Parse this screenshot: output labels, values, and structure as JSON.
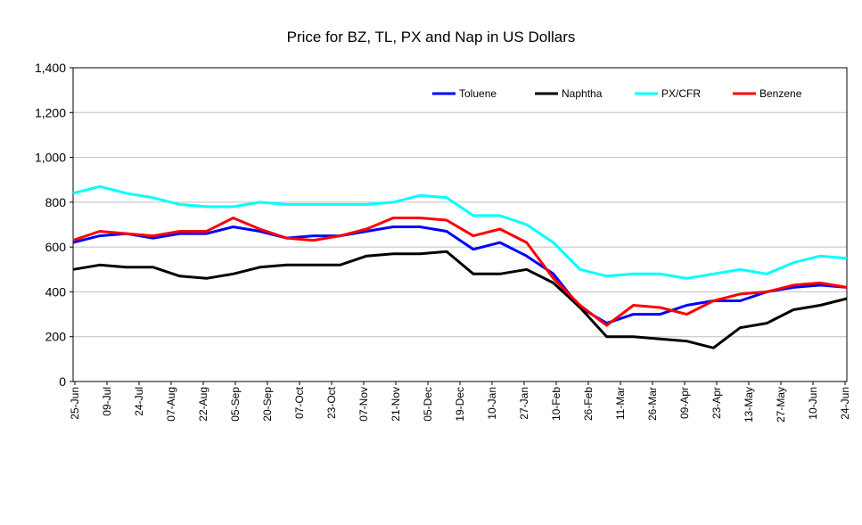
{
  "chart_data": {
    "type": "line",
    "title": "Price for BZ, TL, PX and Nap in US Dollars",
    "xlabel": "",
    "ylabel": "",
    "ylim": [
      0,
      1400
    ],
    "yticks": [
      0,
      200,
      400,
      600,
      800,
      1000,
      1200,
      1400
    ],
    "ytick_labels": [
      "0",
      "200",
      "400",
      "600",
      "800",
      "1,000",
      "1,200",
      "1,400"
    ],
    "grid": true,
    "legend_placement": "top-right",
    "x_tick_labels": [
      "25-Jun",
      "09-Jul",
      "24-Jul",
      "07-Aug",
      "22-Aug",
      "05-Sep",
      "20-Sep",
      "07-Oct",
      "23-Oct",
      "07-Nov",
      "21-Nov",
      "05-Dec",
      "19-Dec",
      "10-Jan",
      "27-Jan",
      "10-Feb",
      "26-Feb",
      "11-Mar",
      "26-Mar",
      "09-Apr",
      "23-Apr",
      "13-May",
      "27-May",
      "10-Jun",
      "24-Jun"
    ],
    "series": [
      {
        "name": "Toluene",
        "color": "#0000ff",
        "values": [
          620,
          650,
          660,
          640,
          660,
          660,
          690,
          670,
          640,
          650,
          650,
          670,
          690,
          690,
          670,
          590,
          620,
          560,
          480,
          330,
          260,
          300,
          300,
          340,
          360,
          360,
          400,
          420,
          430,
          420
        ]
      },
      {
        "name": "Naphtha",
        "color": "#000000",
        "values": [
          500,
          520,
          510,
          510,
          470,
          460,
          480,
          510,
          520,
          520,
          520,
          560,
          570,
          570,
          580,
          480,
          480,
          500,
          440,
          330,
          200,
          200,
          190,
          180,
          150,
          240,
          260,
          320,
          340,
          370
        ]
      },
      {
        "name": "PX/CFR",
        "color": "#00ffff",
        "values": [
          840,
          870,
          840,
          820,
          790,
          780,
          780,
          800,
          790,
          790,
          790,
          790,
          800,
          830,
          820,
          740,
          740,
          700,
          620,
          500,
          470,
          480,
          480,
          460,
          480,
          500,
          480,
          530,
          560,
          550
        ]
      },
      {
        "name": "Benzene",
        "color": "#ff0000",
        "values": [
          630,
          670,
          660,
          650,
          670,
          670,
          730,
          680,
          640,
          630,
          650,
          680,
          730,
          730,
          720,
          650,
          680,
          620,
          460,
          340,
          250,
          340,
          330,
          300,
          360,
          390,
          400,
          430,
          440,
          420
        ]
      }
    ]
  }
}
